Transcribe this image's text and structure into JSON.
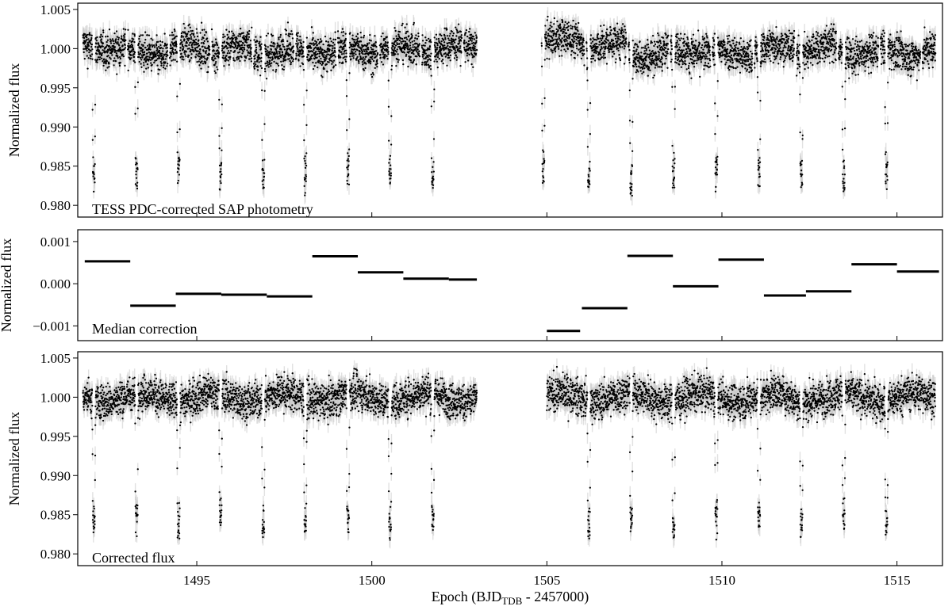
{
  "chart_data": [
    {
      "type": "scatter",
      "panel_label": "TESS PDC-corrected SAP photometry",
      "ylabel": "Normalized flux",
      "xlim": [
        1491.6,
        1516.3
      ],
      "ylim": [
        0.9785,
        1.0058
      ],
      "yticks": [
        "0.980",
        "0.985",
        "0.990",
        "0.995",
        "1.000",
        "1.005"
      ],
      "ytick_values": [
        0.98,
        0.985,
        0.99,
        0.995,
        1.0,
        1.005
      ],
      "segments": [
        {
          "x": [
            1491.75,
            1492.97
          ],
          "baseline": 1.0003
        },
        {
          "x": [
            1493.03,
            1494.17
          ],
          "baseline": 0.9995
        },
        {
          "x": [
            1494.23,
            1495.37
          ],
          "baseline": 1.0
        },
        {
          "x": [
            1495.43,
            1496.57
          ],
          "baseline": 0.9999
        },
        {
          "x": [
            1496.63,
            1497.77
          ],
          "baseline": 0.9998
        },
        {
          "x": [
            1497.83,
            1498.97
          ],
          "baseline": 0.99975
        },
        {
          "x": [
            1499.03,
            1500.17
          ],
          "baseline": 0.99965
        },
        {
          "x": [
            1500.23,
            1501.37
          ],
          "baseline": 0.9999
        },
        {
          "x": [
            1501.43,
            1502.57
          ],
          "baseline": 1.0001
        },
        {
          "x": [
            1502.63,
            1503.0
          ],
          "baseline": 1.0006
        },
        {
          "x": [
            1504.85,
            1506.07
          ],
          "baseline": 1.0009
        },
        {
          "x": [
            1506.13,
            1507.27
          ],
          "baseline": 1.0003
        },
        {
          "x": [
            1507.33,
            1508.47
          ],
          "baseline": 0.9994
        },
        {
          "x": [
            1508.53,
            1509.67
          ],
          "baseline": 0.9999
        },
        {
          "x": [
            1509.73,
            1510.87
          ],
          "baseline": 0.9993
        },
        {
          "x": [
            1510.93,
            1512.07
          ],
          "baseline": 0.9999
        },
        {
          "x": [
            1512.13,
            1513.27
          ],
          "baseline": 1.0001
        },
        {
          "x": [
            1513.33,
            1514.47
          ],
          "baseline": 0.9996
        },
        {
          "x": [
            1514.53,
            1515.67
          ],
          "baseline": 0.99955
        },
        {
          "x": [
            1515.73,
            1516.1
          ],
          "baseline": 0.9994
        }
      ],
      "transits": [
        1492.06,
        1493.28,
        1494.48,
        1495.68,
        1496.9,
        1498.1,
        1499.32,
        1500.52,
        1501.74,
        1504.9,
        1506.2,
        1507.41,
        1508.62,
        1509.84,
        1511.06,
        1512.27,
        1513.48,
        1514.7
      ],
      "transit_depth": 0.9843
    },
    {
      "type": "line",
      "panel_label": "Median correction",
      "ylabel": "Normalized flux",
      "xlim": [
        1491.6,
        1516.3
      ],
      "ylim": [
        -0.00135,
        0.00128
      ],
      "yticks": [
        "−0.001",
        "0.000",
        "0.001"
      ],
      "ytick_values": [
        -0.001,
        0.0,
        0.001
      ],
      "steps": [
        {
          "x": [
            1491.8,
            1493.1
          ],
          "y": 0.00053
        },
        {
          "x": [
            1493.1,
            1494.4
          ],
          "y": -0.00052
        },
        {
          "x": [
            1494.4,
            1495.7
          ],
          "y": -0.00024
        },
        {
          "x": [
            1495.7,
            1497.0
          ],
          "y": -0.00026
        },
        {
          "x": [
            1497.0,
            1498.3
          ],
          "y": -0.0003
        },
        {
          "x": [
            1498.3,
            1499.6
          ],
          "y": 0.00065
        },
        {
          "x": [
            1499.6,
            1500.9
          ],
          "y": 0.00027
        },
        {
          "x": [
            1500.9,
            1502.2
          ],
          "y": 0.00012
        },
        {
          "x": [
            1502.2,
            1503.0
          ],
          "y": 0.0001
        },
        {
          "x": [
            1505.0,
            1505.95
          ],
          "y": -0.00112
        },
        {
          "x": [
            1506.0,
            1507.3
          ],
          "y": -0.00058
        },
        {
          "x": [
            1507.3,
            1508.6
          ],
          "y": 0.00066
        },
        {
          "x": [
            1508.6,
            1509.9
          ],
          "y": -6e-05
        },
        {
          "x": [
            1509.9,
            1511.2
          ],
          "y": 0.00057
        },
        {
          "x": [
            1511.2,
            1512.4
          ],
          "y": -0.00028
        },
        {
          "x": [
            1512.4,
            1513.7
          ],
          "y": -0.00018
        },
        {
          "x": [
            1513.7,
            1515.0
          ],
          "y": 0.00046
        },
        {
          "x": [
            1515.0,
            1516.2
          ],
          "y": 0.00029
        }
      ]
    },
    {
      "type": "scatter",
      "panel_label": "Corrected flux",
      "ylabel": "Normalized flux",
      "xlabel_main": "Epoch (BJD",
      "xlabel_sub": "TDB",
      "xlabel_tail": " - 2457000)",
      "xlim": [
        1491.6,
        1516.3
      ],
      "ylim": [
        0.9785,
        1.0058
      ],
      "xticks": [
        "1495",
        "1500",
        "1505",
        "1510",
        "1515"
      ],
      "xtick_values": [
        1495,
        1500,
        1505,
        1510,
        1515
      ],
      "yticks": [
        "0.980",
        "0.985",
        "0.990",
        "0.995",
        "1.000",
        "1.005"
      ],
      "ytick_values": [
        0.98,
        0.985,
        0.99,
        0.995,
        1.0,
        1.005
      ],
      "segments": [
        {
          "x": [
            1491.75,
            1503.0
          ],
          "baseline": 1.0
        },
        {
          "x": [
            1505.0,
            1516.1
          ],
          "baseline": 1.0
        }
      ],
      "transits": [
        1492.06,
        1493.28,
        1494.48,
        1495.68,
        1496.9,
        1498.1,
        1499.32,
        1500.52,
        1501.74,
        1506.2,
        1507.41,
        1508.62,
        1509.84,
        1511.06,
        1512.27,
        1513.48,
        1514.7
      ],
      "transit_depth": 0.9843
    }
  ],
  "colors": {
    "points": "#000000",
    "errorbars": "#c8c8c8",
    "steps": "#000000"
  }
}
